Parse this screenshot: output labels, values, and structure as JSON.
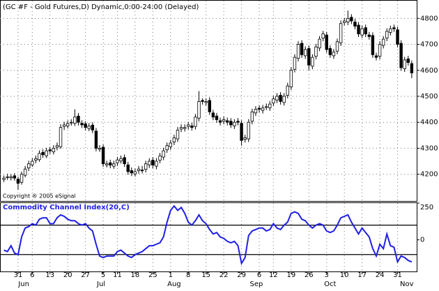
{
  "chart_data": [
    {
      "type": "candlestick",
      "title": "(GC #F - Gold Futures,D) Dynamic,0:00-24:00 (Delayed)",
      "annotation": "Copyright ® 2005 eSignal",
      "xlim": [
        -1.1,
        116.4
      ],
      "ylim": [
        4097,
        4868
      ],
      "yticks": [
        4200,
        4300,
        4400,
        4500,
        4600,
        4700,
        4800
      ],
      "grid": true,
      "up_color": "#ffffff",
      "down_color": "#000000",
      "ohlc": [
        [
          4180,
          4195,
          4170,
          4185
        ],
        [
          4189,
          4202,
          4178,
          4190
        ],
        [
          4186,
          4200,
          4176,
          4190
        ],
        [
          4194,
          4204,
          4175,
          4185
        ],
        [
          4181,
          4190,
          4140,
          4165
        ],
        [
          4169,
          4210,
          4160,
          4200
        ],
        [
          4196,
          4232,
          4188,
          4220
        ],
        [
          4224,
          4252,
          4212,
          4240
        ],
        [
          4236,
          4262,
          4228,
          4250
        ],
        [
          4254,
          4272,
          4242,
          4260
        ],
        [
          4256,
          4292,
          4248,
          4280
        ],
        [
          4284,
          4296,
          4263,
          4275
        ],
        [
          4271,
          4302,
          4262,
          4290
        ],
        [
          4294,
          4305,
          4278,
          4290
        ],
        [
          4286,
          4312,
          4276,
          4300
        ],
        [
          4304,
          4322,
          4292,
          4310
        ],
        [
          4306,
          4392,
          4298,
          4380
        ],
        [
          4384,
          4402,
          4370,
          4390
        ],
        [
          4386,
          4407,
          4376,
          4395
        ],
        [
          4399,
          4412,
          4387,
          4400
        ],
        [
          4396,
          4450,
          4386,
          4420
        ],
        [
          4424,
          4436,
          4388,
          4400
        ],
        [
          4396,
          4408,
          4378,
          4390
        ],
        [
          4394,
          4404,
          4368,
          4380
        ],
        [
          4376,
          4397,
          4366,
          4385
        ],
        [
          4389,
          4400,
          4358,
          4370
        ],
        [
          4366,
          4378,
          4288,
          4300
        ],
        [
          4296,
          4312,
          4286,
          4300
        ],
        [
          4304,
          4314,
          4228,
          4240
        ],
        [
          4236,
          4252,
          4226,
          4240
        ],
        [
          4244,
          4256,
          4223,
          4235
        ],
        [
          4231,
          4252,
          4221,
          4240
        ],
        [
          4244,
          4267,
          4232,
          4255
        ],
        [
          4251,
          4272,
          4241,
          4260
        ],
        [
          4264,
          4276,
          4228,
          4240
        ],
        [
          4236,
          4248,
          4198,
          4210
        ],
        [
          4214,
          4226,
          4193,
          4205
        ],
        [
          4201,
          4222,
          4191,
          4210
        ],
        [
          4214,
          4232,
          4202,
          4220
        ],
        [
          4216,
          4232,
          4203,
          4215
        ],
        [
          4219,
          4252,
          4207,
          4240
        ],
        [
          4236,
          4262,
          4224,
          4250
        ],
        [
          4254,
          4266,
          4223,
          4235
        ],
        [
          4231,
          4262,
          4219,
          4250
        ],
        [
          4254,
          4282,
          4242,
          4270
        ],
        [
          4266,
          4302,
          4254,
          4290
        ],
        [
          4294,
          4322,
          4282,
          4310
        ],
        [
          4306,
          4332,
          4294,
          4320
        ],
        [
          4324,
          4352,
          4312,
          4340
        ],
        [
          4336,
          4382,
          4324,
          4370
        ],
        [
          4374,
          4392,
          4362,
          4380
        ],
        [
          4376,
          4392,
          4364,
          4380
        ],
        [
          4384,
          4402,
          4372,
          4390
        ],
        [
          4386,
          4398,
          4368,
          4380
        ],
        [
          4384,
          4432,
          4372,
          4420
        ],
        [
          4416,
          4520,
          4404,
          4480
        ],
        [
          4484,
          4492,
          4468,
          4480
        ],
        [
          4476,
          4492,
          4464,
          4480
        ],
        [
          4484,
          4496,
          4428,
          4440
        ],
        [
          4436,
          4448,
          4408,
          4420
        ],
        [
          4424,
          4436,
          4398,
          4410
        ],
        [
          4406,
          4418,
          4388,
          4400
        ],
        [
          4404,
          4422,
          4392,
          4410
        ],
        [
          4406,
          4418,
          4388,
          4400
        ],
        [
          4404,
          4416,
          4378,
          4390
        ],
        [
          4386,
          4412,
          4374,
          4400
        ],
        [
          4404,
          4416,
          4388,
          4400
        ],
        [
          4396,
          4408,
          4310,
          4330
        ],
        [
          4334,
          4352,
          4322,
          4340
        ],
        [
          4336,
          4412,
          4324,
          4400
        ],
        [
          4404,
          4452,
          4392,
          4440
        ],
        [
          4436,
          4462,
          4424,
          4450
        ],
        [
          4454,
          4466,
          4438,
          4450
        ],
        [
          4446,
          4467,
          4434,
          4455
        ],
        [
          4459,
          4472,
          4447,
          4460
        ],
        [
          4456,
          4482,
          4444,
          4470
        ],
        [
          4474,
          4502,
          4462,
          4490
        ],
        [
          4486,
          4512,
          4474,
          4500
        ],
        [
          4504,
          4516,
          4468,
          4480
        ],
        [
          4476,
          4512,
          4464,
          4500
        ],
        [
          4504,
          4552,
          4492,
          4540
        ],
        [
          4536,
          4612,
          4524,
          4600
        ],
        [
          4604,
          4662,
          4592,
          4650
        ],
        [
          4646,
          4712,
          4634,
          4700
        ],
        [
          4704,
          4716,
          4648,
          4660
        ],
        [
          4656,
          4692,
          4644,
          4680
        ],
        [
          4684,
          4696,
          4600,
          4620
        ],
        [
          4616,
          4662,
          4604,
          4650
        ],
        [
          4654,
          4702,
          4642,
          4690
        ],
        [
          4686,
          4732,
          4674,
          4720
        ],
        [
          4724,
          4752,
          4712,
          4740
        ],
        [
          4736,
          4748,
          4668,
          4680
        ],
        [
          4684,
          4696,
          4648,
          4660
        ],
        [
          4656,
          4682,
          4644,
          4670
        ],
        [
          4674,
          4722,
          4662,
          4710
        ],
        [
          4706,
          4792,
          4694,
          4780
        ],
        [
          4784,
          4802,
          4772,
          4790
        ],
        [
          4786,
          4830,
          4774,
          4800
        ],
        [
          4804,
          4816,
          4778,
          4790
        ],
        [
          4786,
          4798,
          4758,
          4770
        ],
        [
          4774,
          4786,
          4728,
          4740
        ],
        [
          4736,
          4772,
          4724,
          4760
        ],
        [
          4764,
          4776,
          4728,
          4740
        ],
        [
          4736,
          4748,
          4718,
          4730
        ],
        [
          4734,
          4746,
          4648,
          4660
        ],
        [
          4656,
          4668,
          4638,
          4650
        ],
        [
          4654,
          4712,
          4642,
          4700
        ],
        [
          4696,
          4732,
          4684,
          4720
        ],
        [
          4724,
          4762,
          4712,
          4750
        ],
        [
          4746,
          4772,
          4734,
          4760
        ],
        [
          4764,
          4776,
          4748,
          4760
        ],
        [
          4756,
          4768,
          4688,
          4700
        ],
        [
          4704,
          4716,
          4598,
          4610
        ],
        [
          4606,
          4652,
          4594,
          4640
        ],
        [
          4644,
          4656,
          4618,
          4630
        ],
        [
          4626,
          4638,
          4570,
          4590
        ]
      ],
      "xticks": [
        {
          "value": 4,
          "label": "31"
        },
        {
          "value": 8,
          "label": "6"
        },
        {
          "value": 13,
          "label": "13"
        },
        {
          "value": 18,
          "label": "20"
        },
        {
          "value": 23,
          "label": "27"
        },
        {
          "value": 28,
          "label": "5"
        },
        {
          "value": 32,
          "label": "11"
        },
        {
          "value": 37,
          "label": "18"
        },
        {
          "value": 42,
          "label": "25"
        },
        {
          "value": 47,
          "label": "1"
        },
        {
          "value": 52,
          "label": "8"
        },
        {
          "value": 57,
          "label": "15"
        },
        {
          "value": 62,
          "label": "22"
        },
        {
          "value": 67,
          "label": "29"
        },
        {
          "value": 72,
          "label": "6"
        },
        {
          "value": 76,
          "label": "12"
        },
        {
          "value": 81,
          "label": "19"
        },
        {
          "value": 86,
          "label": "26"
        },
        {
          "value": 91,
          "label": "3"
        },
        {
          "value": 96,
          "label": "10"
        },
        {
          "value": 101,
          "label": "17"
        },
        {
          "value": 106,
          "label": "24"
        },
        {
          "value": 111,
          "label": "31"
        }
      ],
      "month_ticks": [
        {
          "value": 5.6,
          "label": "Jun"
        },
        {
          "value": 27.4,
          "label": "Jul"
        },
        {
          "value": 48,
          "label": "Aug"
        },
        {
          "value": 71.2,
          "label": "Sep"
        },
        {
          "value": 92,
          "label": "Oct"
        },
        {
          "value": 113.6,
          "label": "Nov"
        }
      ]
    },
    {
      "type": "line",
      "title": "Commodity Channel Index(20,C)",
      "color": "#1f1fe6",
      "xlim": [
        -1.1,
        116.4
      ],
      "ylim": [
        -215,
        250
      ],
      "yticks": [
        0,
        250
      ],
      "levels": [
        100,
        -100
      ],
      "values": [
        -70,
        -80,
        -40,
        -90,
        -100,
        20,
        80,
        90,
        110,
        100,
        140,
        150,
        150,
        110,
        110,
        150,
        170,
        160,
        140,
        130,
        130,
        110,
        100,
        110,
        80,
        60,
        -30,
        -110,
        -120,
        -110,
        -110,
        -110,
        -80,
        -70,
        -90,
        -110,
        -120,
        -100,
        -90,
        -80,
        -60,
        -40,
        -40,
        -30,
        -20,
        20,
        120,
        200,
        230,
        200,
        220,
        180,
        120,
        100,
        130,
        170,
        130,
        110,
        70,
        40,
        50,
        20,
        10,
        -10,
        -20,
        -10,
        -40,
        -160,
        -120,
        30,
        60,
        70,
        80,
        80,
        60,
        70,
        110,
        80,
        70,
        100,
        120,
        180,
        190,
        180,
        140,
        130,
        100,
        80,
        100,
        110,
        100,
        60,
        50,
        60,
        100,
        150,
        160,
        170,
        120,
        80,
        40,
        80,
        50,
        20,
        -60,
        -110,
        -30,
        -60,
        40,
        -40,
        -50,
        -150,
        -110,
        -120,
        -140,
        -150
      ]
    }
  ]
}
